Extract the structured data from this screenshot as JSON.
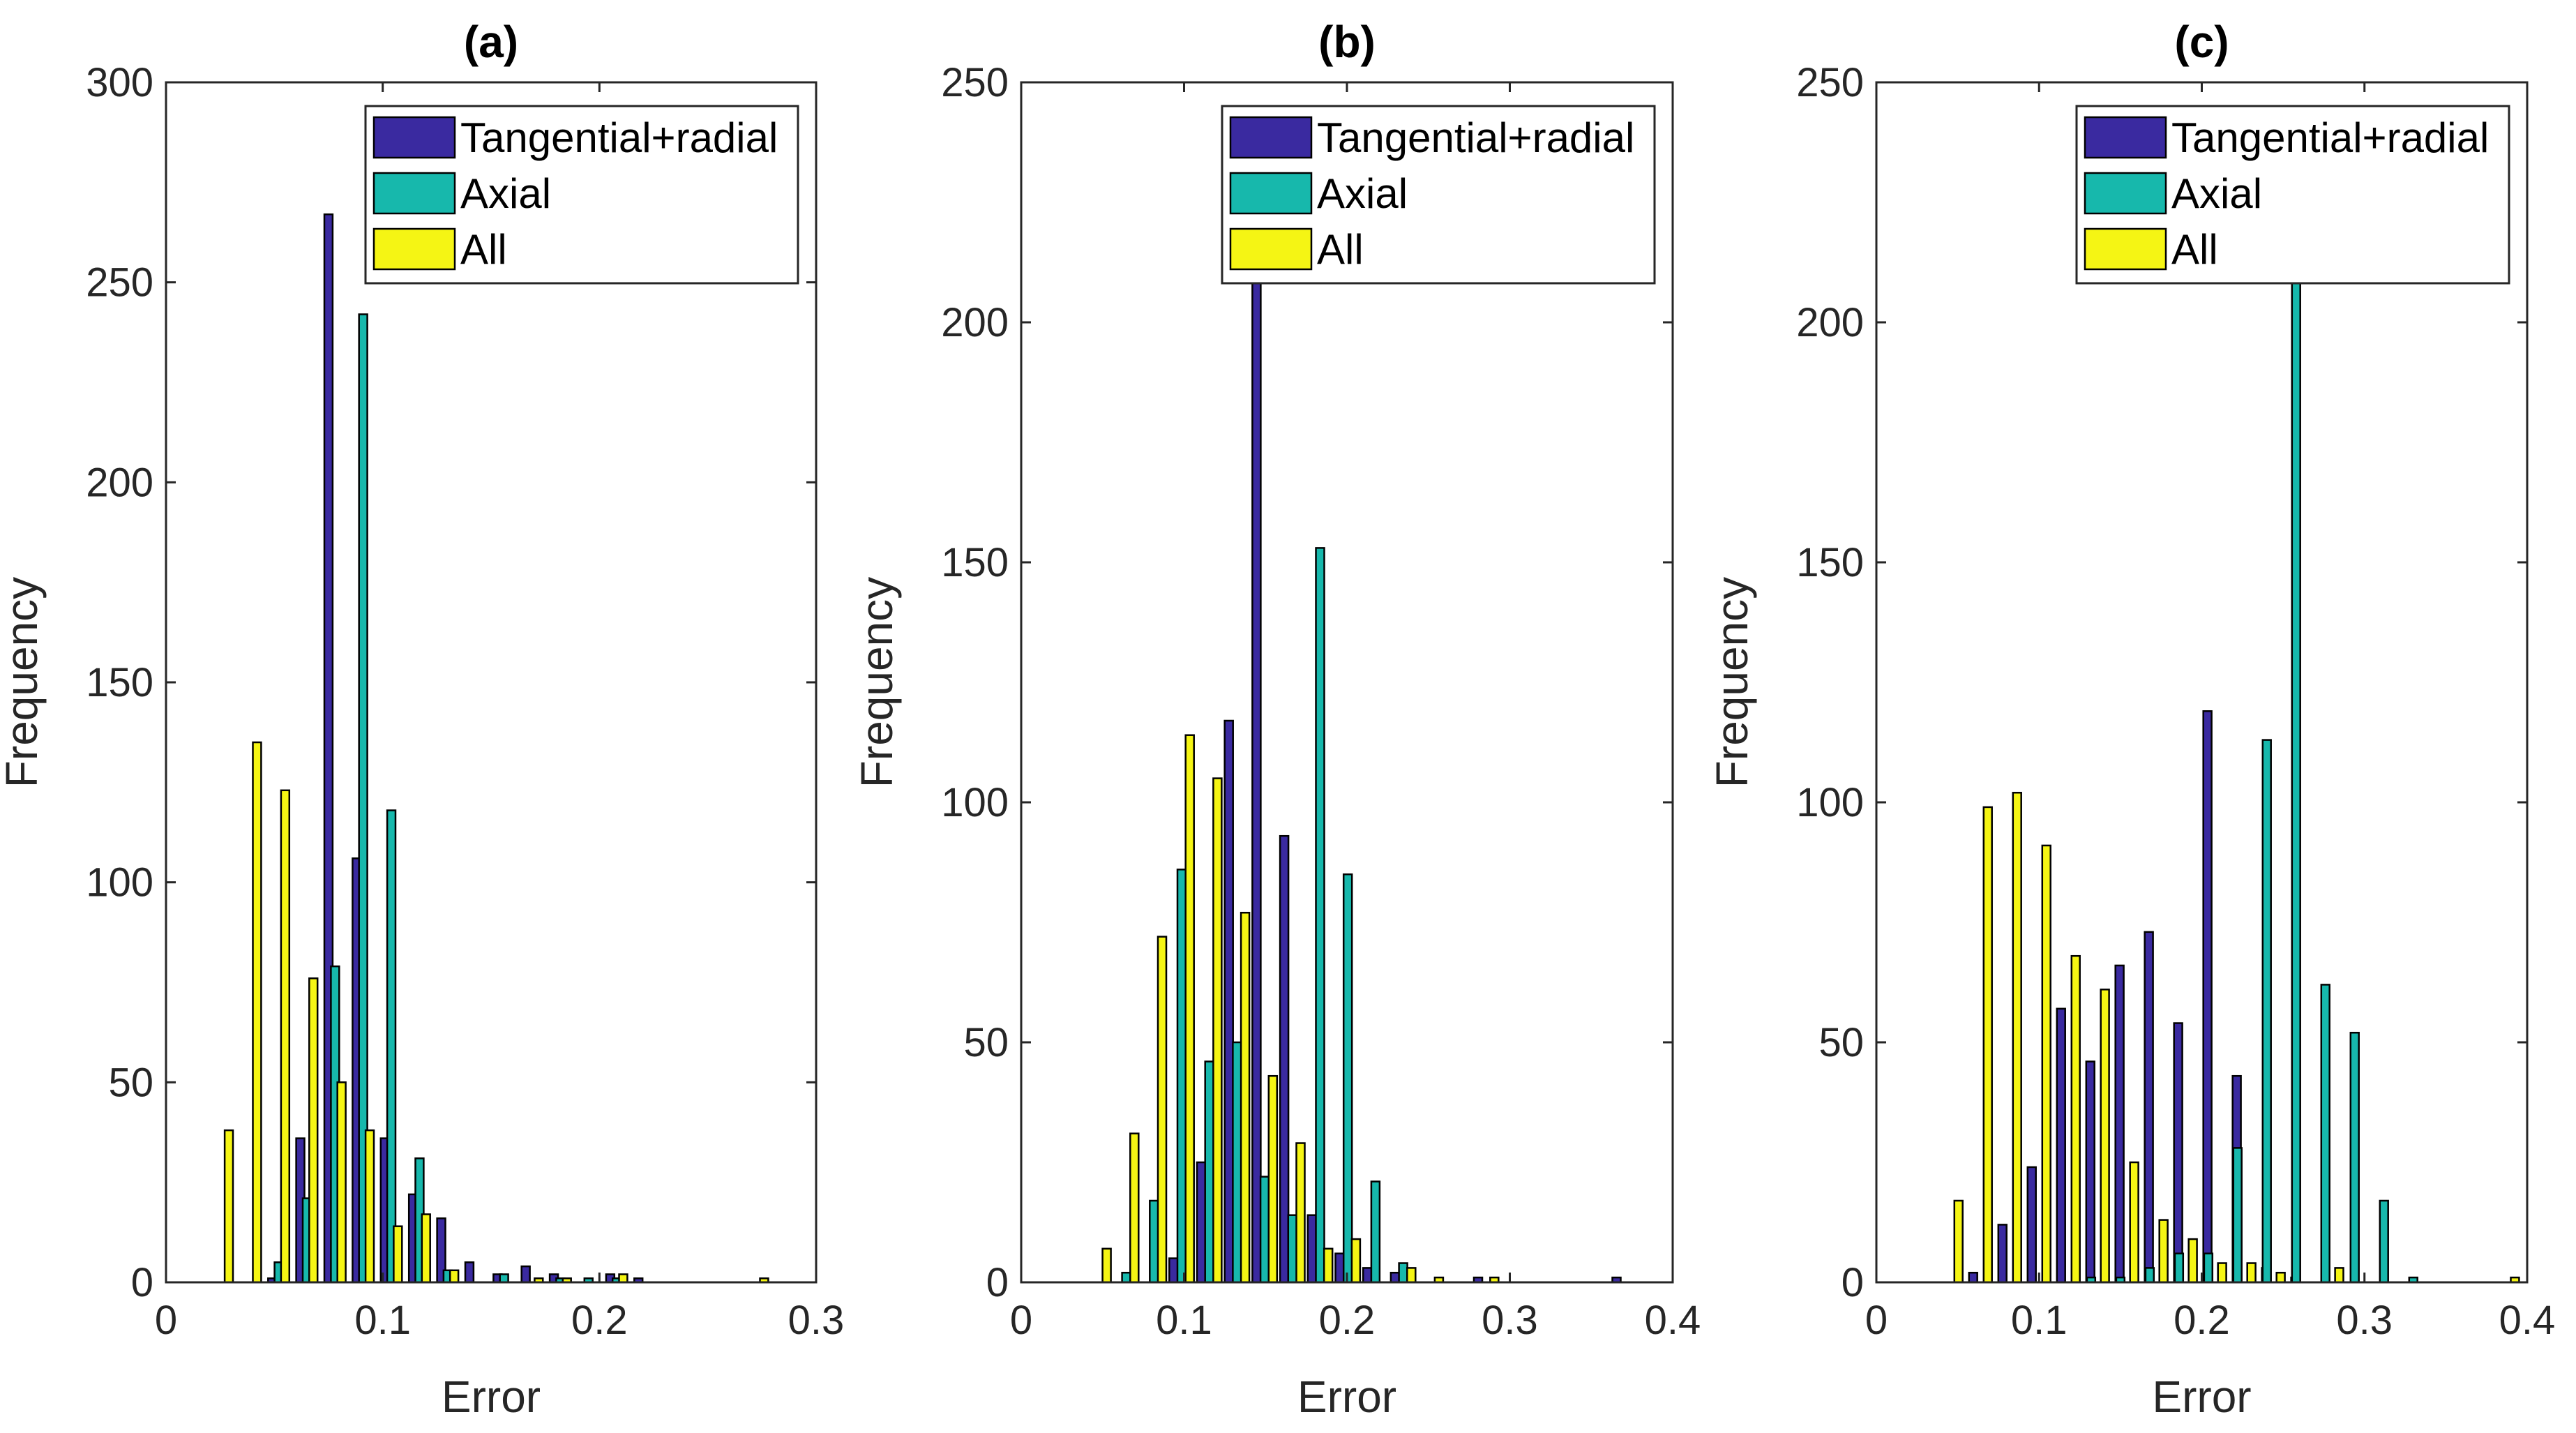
{
  "chart_data": [
    {
      "type": "bar",
      "panel": "(a)",
      "title": "(a)",
      "xlabel": "Error",
      "ylabel": "Frequency",
      "xlim": [
        0,
        0.3
      ],
      "ylim": [
        0,
        300
      ],
      "xticks": [
        "0",
        "0.1",
        "0.2",
        "0.3"
      ],
      "yticks": [
        "0",
        "50",
        "100",
        "150",
        "200",
        "250",
        "300"
      ],
      "legend_position": "top-right",
      "series": [
        {
          "name": "Tangential+radial",
          "color": "#3a2aa0",
          "x": [
            0.049,
            0.062,
            0.075,
            0.088,
            0.101,
            0.114,
            0.127,
            0.14,
            0.153,
            0.166,
            0.179,
            0.205,
            0.218,
            0.283
          ],
          "values": [
            1,
            36,
            267,
            106,
            36,
            22,
            16,
            5,
            2,
            4,
            2,
            2,
            1,
            0
          ]
        },
        {
          "name": "Axial",
          "color": "#17b8ac",
          "x": [
            0.052,
            0.065,
            0.078,
            0.091,
            0.104,
            0.117,
            0.13,
            0.156,
            0.182,
            0.195,
            0.208,
            0.221
          ],
          "values": [
            5,
            21,
            79,
            242,
            118,
            31,
            3,
            2,
            1,
            1,
            1,
            0
          ]
        },
        {
          "name": "All",
          "color": "#f5f514",
          "x": [
            0.029,
            0.042,
            0.055,
            0.068,
            0.081,
            0.094,
            0.107,
            0.12,
            0.133,
            0.172,
            0.185,
            0.211,
            0.276
          ],
          "values": [
            38,
            135,
            123,
            76,
            50,
            38,
            14,
            17,
            3,
            1,
            1,
            2,
            1
          ]
        }
      ]
    },
    {
      "type": "bar",
      "panel": "(b)",
      "title": "(b)",
      "xlabel": "Error",
      "ylabel": "Frequency",
      "xlim": [
        0,
        0.4
      ],
      "ylim": [
        0,
        250
      ],
      "xticks": [
        "0",
        "0.1",
        "0.2",
        "0.3",
        "0.4"
      ],
      "yticks": [
        "0",
        "50",
        "100",
        "150",
        "200",
        "250"
      ],
      "legend_position": "top-right",
      "series": [
        {
          "name": "Tangential+radial",
          "color": "#3a2aa0",
          "x": [
            0.0935,
            0.1105,
            0.1275,
            0.1445,
            0.1615,
            0.1785,
            0.1955,
            0.2125,
            0.2295,
            0.2805,
            0.3655
          ],
          "values": [
            5,
            25,
            117,
            213,
            93,
            14,
            6,
            3,
            2,
            1,
            1
          ]
        },
        {
          "name": "Axial",
          "color": "#17b8ac",
          "x": [
            0.0645,
            0.0815,
            0.0985,
            0.1155,
            0.1325,
            0.1495,
            0.1665,
            0.1835,
            0.2005,
            0.2175,
            0.2345
          ],
          "values": [
            2,
            17,
            86,
            46,
            50,
            22,
            14,
            153,
            85,
            21,
            4
          ]
        },
        {
          "name": "All",
          "color": "#f5f514",
          "x": [
            0.0525,
            0.0695,
            0.0865,
            0.1035,
            0.1205,
            0.1375,
            0.1545,
            0.1715,
            0.1885,
            0.2055,
            0.2395,
            0.2565,
            0.2905
          ],
          "values": [
            7,
            31,
            72,
            114,
            105,
            77,
            43,
            29,
            7,
            9,
            3,
            1,
            1
          ]
        }
      ]
    },
    {
      "type": "bar",
      "panel": "(c)",
      "title": "(c)",
      "xlabel": "Error",
      "ylabel": "Frequency",
      "xlim": [
        0,
        0.4
      ],
      "ylim": [
        0,
        250
      ],
      "xticks": [
        "0",
        "0.1",
        "0.2",
        "0.3",
        "0.4"
      ],
      "yticks": [
        "0",
        "50",
        "100",
        "150",
        "200",
        "250"
      ],
      "legend_position": "top-right",
      "series": [
        {
          "name": "Tangential+radial",
          "color": "#3a2aa0",
          "x": [
            0.0595,
            0.0775,
            0.0955,
            0.1135,
            0.1315,
            0.1495,
            0.1675,
            0.1855,
            0.2035,
            0.2215,
            0.2395,
            0.2575
          ],
          "values": [
            2,
            12,
            24,
            57,
            46,
            66,
            73,
            54,
            119,
            43,
            3,
            1
          ]
        },
        {
          "name": "Axial",
          "color": "#17b8ac",
          "x": [
            0.132,
            0.15,
            0.168,
            0.186,
            0.204,
            0.222,
            0.24,
            0.258,
            0.276,
            0.294,
            0.312,
            0.33
          ],
          "values": [
            1,
            1,
            3,
            6,
            6,
            28,
            113,
            215,
            62,
            52,
            17,
            1
          ]
        },
        {
          "name": "All",
          "color": "#f5f514",
          "x": [
            0.0505,
            0.0685,
            0.0865,
            0.1045,
            0.1225,
            0.1405,
            0.1585,
            0.1765,
            0.1945,
            0.2125,
            0.2305,
            0.2485,
            0.2845,
            0.3925
          ],
          "values": [
            17,
            99,
            102,
            91,
            68,
            61,
            25,
            13,
            9,
            4,
            4,
            2,
            3,
            1
          ]
        }
      ]
    }
  ]
}
